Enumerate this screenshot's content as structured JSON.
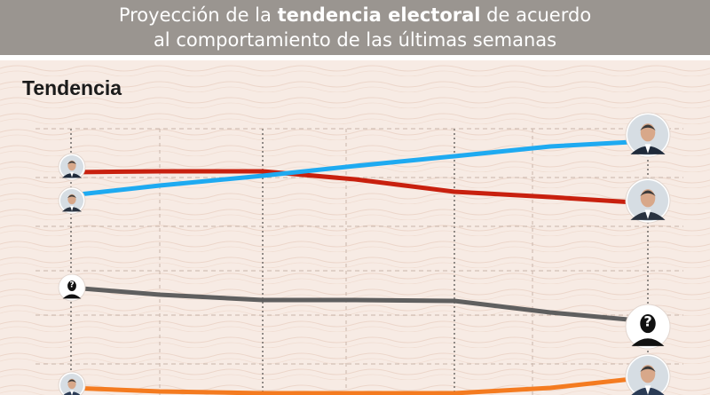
{
  "header": {
    "line1_pre": "Proyección de la ",
    "line1_bold": "tendencia electoral",
    "line1_post": " de acuerdo",
    "line2": "al comportamiento de las últimas semanas"
  },
  "section_title": "Tendencia",
  "colors": {
    "header_bg": "#9a9590",
    "background": "#f7ebe4",
    "red": "#c8200e",
    "blue": "#1eaaf1",
    "gray": "#5f5f5f",
    "orange": "#f47b20"
  },
  "chart_data": {
    "type": "line",
    "title": "Tendencia",
    "x": [
      0,
      1,
      2,
      3,
      4,
      5,
      6
    ],
    "grid": true,
    "series": [
      {
        "color": "#c8200e",
        "icon": "candidate-photo-icon",
        "values": [
          194,
          193,
          193,
          202,
          216,
          222,
          229
        ]
      },
      {
        "color": "#1eaaf1",
        "icon": "candidate-photo-icon",
        "values": [
          220,
          209,
          198,
          187,
          176,
          165,
          159
        ]
      },
      {
        "color": "#5f5f5f",
        "icon": "unknown-person-icon",
        "values": [
          324,
          332,
          338,
          338,
          339,
          352,
          362
        ]
      },
      {
        "color": "#f47b20",
        "icon": "candidate-photo-icon",
        "values": [
          437,
          441,
          443,
          443,
          443,
          437,
          425
        ]
      }
    ]
  }
}
